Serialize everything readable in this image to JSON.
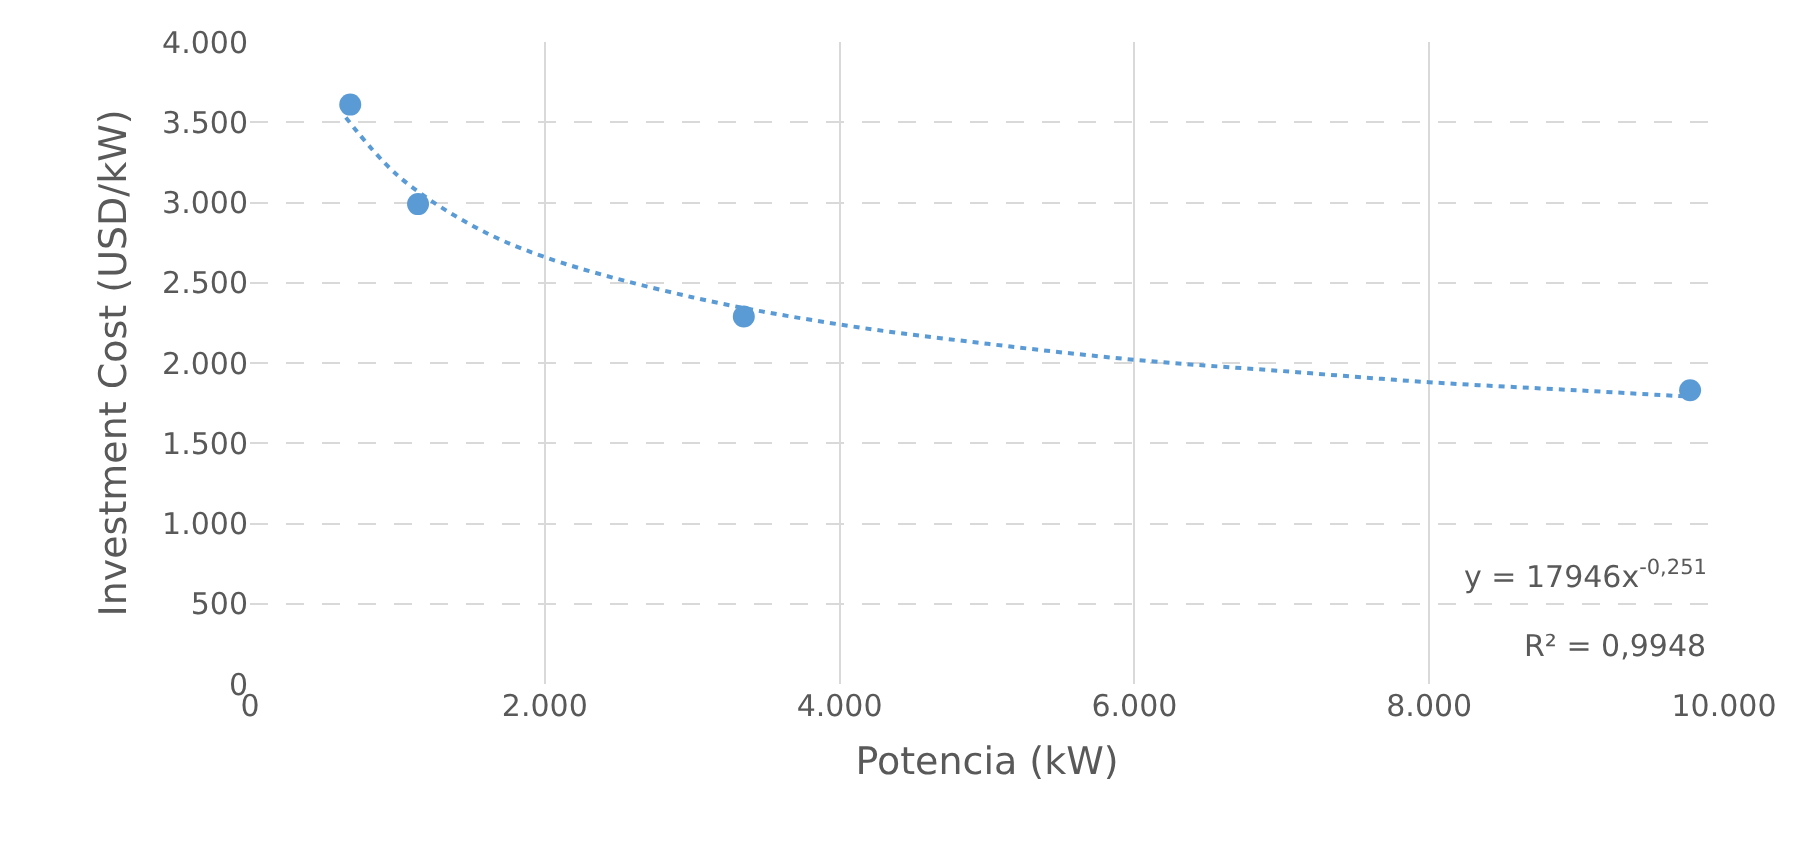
{
  "chart_data": {
    "type": "scatter",
    "xlabel": "Potencia (kW)",
    "ylabel": "Investment Cost (USD/kW)",
    "series": [
      {
        "type": "scatter",
        "color": "#5b9bd5",
        "marker": "circle",
        "x": [
          680,
          1140,
          3350,
          9770
        ],
        "values": [
          3610,
          2990,
          2290,
          1830
        ]
      },
      {
        "type": "line",
        "color": "#5b9bd5",
        "marker": "none",
        "line_style": "dotted",
        "x": [
          650,
          1000,
          1500,
          2000,
          3000,
          4000,
          5000,
          6000,
          7000,
          8000,
          9000,
          9770
        ],
        "values": [
          3530,
          3170,
          2860,
          2660,
          2410,
          2240,
          2120,
          2020,
          1950,
          1880,
          1830,
          1790
        ]
      }
    ],
    "xlim": [
      0,
      10000
    ],
    "ylim": [
      0,
      4000
    ],
    "xticks": [
      0,
      {
        "value": 2000,
        "label": "2.000"
      },
      {
        "value": 4000,
        "label": "4.000"
      },
      {
        "value": 6000,
        "label": "6.000"
      },
      {
        "value": 8000,
        "label": "8.000"
      },
      {
        "value": 10000,
        "label": "10.000"
      }
    ],
    "yticks": [
      0,
      500,
      {
        "value": 1000,
        "label": "1.000"
      },
      {
        "value": 1500,
        "label": "1.500"
      },
      {
        "value": 2000,
        "label": "2.000"
      },
      {
        "value": 2500,
        "label": "2.500"
      },
      {
        "value": 3000,
        "label": "3.000"
      },
      {
        "value": 3500,
        "label": "3.500"
      },
      {
        "value": 4000,
        "label": "4.000"
      }
    ],
    "grid": true,
    "annotations": [
      "y = 17946x$^{-0,251}$",
      "R² = 0,9948"
    ]
  }
}
